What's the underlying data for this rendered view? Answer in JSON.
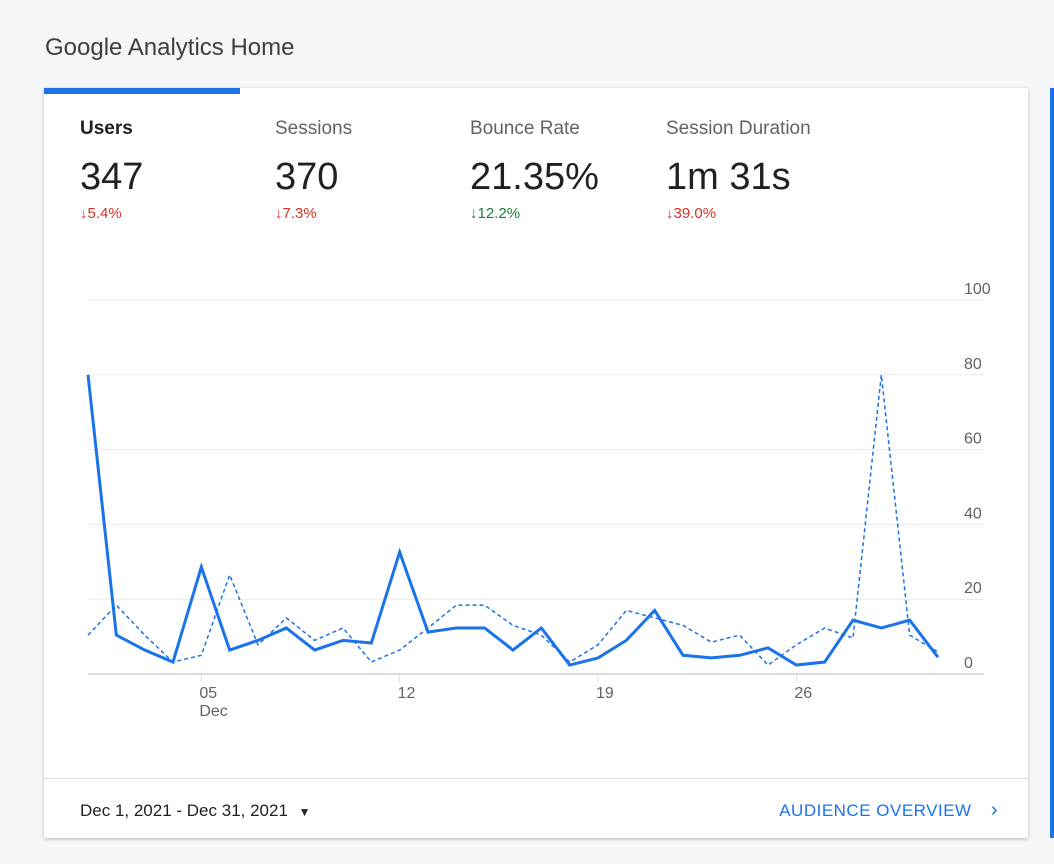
{
  "page_title": "Google Analytics Home",
  "metrics": [
    {
      "label": "Users",
      "value": "347",
      "delta": "5.4%",
      "direction": "down",
      "color": "#d93025"
    },
    {
      "label": "Sessions",
      "value": "370",
      "delta": "7.3%",
      "direction": "down",
      "color": "#d93025"
    },
    {
      "label": "Bounce Rate",
      "value": "21.35%",
      "delta": "12.2%",
      "direction": "down",
      "color": "#188038"
    },
    {
      "label": "Session Duration",
      "value": "1m 31s",
      "delta": "39.0%",
      "direction": "down",
      "color": "#d93025"
    }
  ],
  "footer": {
    "date_range": "Dec 1, 2021 - Dec 31, 2021",
    "audience_link": "AUDIENCE OVERVIEW"
  },
  "chart_data": {
    "type": "line",
    "x": [
      1,
      2,
      3,
      4,
      5,
      6,
      7,
      8,
      9,
      10,
      11,
      12,
      13,
      14,
      15,
      16,
      17,
      18,
      19,
      20,
      21,
      22,
      23,
      24,
      25,
      26,
      27,
      28,
      29,
      30,
      31
    ],
    "series": [
      {
        "name": "Users",
        "style": "solid",
        "color": "#1a73e8",
        "values": [
          80,
          10.4,
          6.4,
          3.2,
          28.6,
          6.4,
          9,
          12.3,
          6.4,
          9,
          8.3,
          32.6,
          11.2,
          12.3,
          12.3,
          6.4,
          12.3,
          2.4,
          4.3,
          9,
          17,
          5,
          4.3,
          5,
          7,
          2.4,
          3.2,
          14.4,
          12.3,
          14.4,
          4.5
        ]
      },
      {
        "name": "Users (previous period)",
        "style": "dashed",
        "color": "#1a73e8",
        "values": [
          10.4,
          18.4,
          10.4,
          3.2,
          5,
          26.5,
          7.8,
          15,
          9,
          12.3,
          3.2,
          6.4,
          12.3,
          18.4,
          18.4,
          13,
          10.4,
          3.2,
          7.8,
          17,
          15,
          13,
          8.5,
          10.4,
          2.4,
          7.8,
          12.3,
          9.6,
          80,
          10.4,
          5.9
        ]
      }
    ],
    "x_ticks": [
      {
        "day": 5,
        "label": "05",
        "sublabel": "Dec"
      },
      {
        "day": 12,
        "label": "12"
      },
      {
        "day": 19,
        "label": "19"
      },
      {
        "day": 26,
        "label": "26"
      }
    ],
    "y_ticks": [
      "0",
      "20",
      "40",
      "60",
      "80",
      "100"
    ],
    "ylim": [
      0,
      100
    ],
    "grid": true
  }
}
